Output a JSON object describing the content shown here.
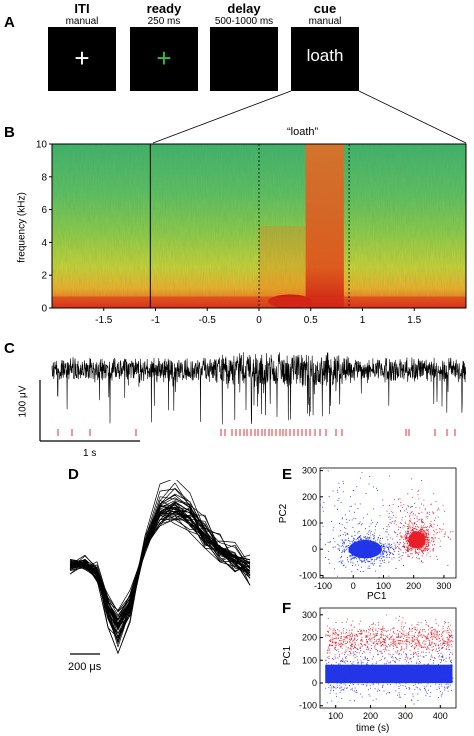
{
  "panels": {
    "a": "A",
    "b": "B",
    "c": "C",
    "d": "D",
    "e": "E",
    "f": "F"
  },
  "stimuli": [
    {
      "title": "ITI",
      "subtitle": "manual",
      "glyph": "+",
      "glyph_color": "#ffffff"
    },
    {
      "title": "ready",
      "subtitle": "250 ms",
      "glyph": "+",
      "glyph_color": "#2fbf3a"
    },
    {
      "title": "delay",
      "subtitle": "500-1000 ms",
      "glyph": "",
      "glyph_color": "#ffffff"
    },
    {
      "title": "cue",
      "subtitle": "manual",
      "word": "loath"
    }
  ],
  "spectrogram": {
    "annotation": "“loath”",
    "ylabel": "frequency (kHz)",
    "y_ticks": [
      "0",
      "2",
      "4",
      "6",
      "8",
      "10"
    ],
    "x_ticks": [
      "-1.5",
      "-1",
      "-0.5",
      "0",
      "0.5",
      "1",
      "1.5"
    ],
    "x_range": [
      -2.0,
      2.0
    ],
    "y_range": [
      0,
      10
    ],
    "cue_window": [
      -1.05,
      1.95
    ],
    "onset_markers": [
      0,
      0.87
    ],
    "colormap": "jet"
  },
  "raw_trace": {
    "scale_y": "100 μV",
    "scale_x": "1 s",
    "trace_color": "#000000",
    "spike_color": "#e0303a"
  },
  "waveform": {
    "scale": "200 μs",
    "color": "#000000"
  },
  "chart_data": [
    {
      "type": "scatter",
      "panel": "E",
      "xlabel": "PC1",
      "ylabel": "PC2",
      "x_ticks": [
        "-100",
        "0",
        "100",
        "200",
        "300"
      ],
      "y_ticks": [
        "-100",
        "0",
        "100",
        "200",
        "300"
      ],
      "xlim": [
        -110,
        340
      ],
      "ylim": [
        -110,
        310
      ],
      "series": [
        {
          "color": "#2236e8",
          "center": [
            40,
            0
          ],
          "spread": [
            55,
            35
          ],
          "halo_spread": [
            100,
            100
          ]
        },
        {
          "color": "#e8202a",
          "center": [
            210,
            35
          ],
          "spread": [
            28,
            32
          ],
          "halo_spread": [
            50,
            80
          ]
        }
      ]
    },
    {
      "type": "scatter",
      "panel": "F",
      "xlabel": "time (s)",
      "ylabel": "PC1",
      "x_ticks": [
        "100",
        "200",
        "300",
        "400"
      ],
      "y_ticks": [
        "-100",
        "0",
        "100",
        "200",
        "300"
      ],
      "xlim": [
        55,
        445
      ],
      "ylim": [
        -110,
        330
      ],
      "series": [
        {
          "color": "#2236e8",
          "center_y": 40,
          "spread_y": 45
        },
        {
          "color": "#e8202a",
          "center_y": 190,
          "spread_y": 35
        }
      ]
    }
  ]
}
